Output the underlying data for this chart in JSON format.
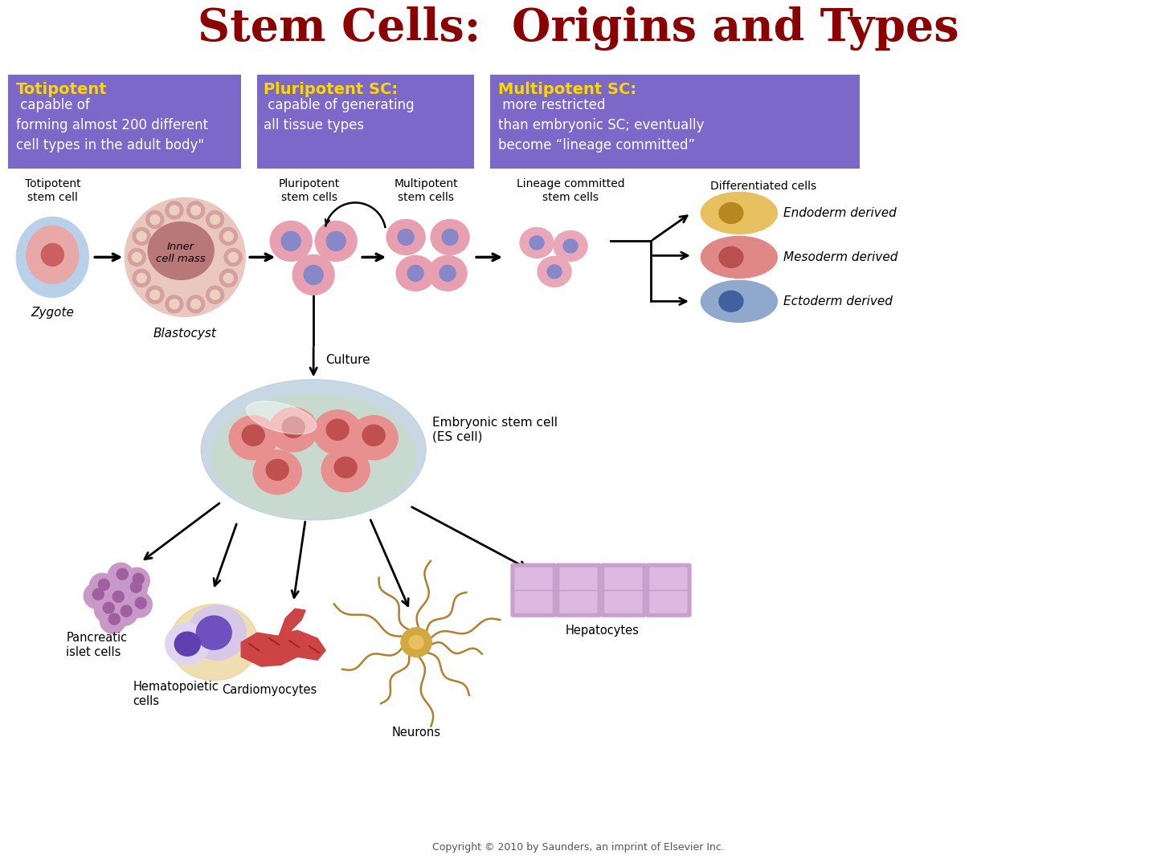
{
  "title": "Stem Cells:  Origins and Types",
  "title_color": "#8B0000",
  "title_fontsize": 40,
  "bg_color": "#FFFFFF",
  "box_color": "#7B68C8",
  "box_text_color": "#FFFFFF",
  "yellow_color": "#FFD700",
  "box1_title": "Totipotent",
  "box1_body": " capable of\nforming almost 200 different\ncell types in the adult body\"",
  "box2_title": "Pluripotent SC:",
  "box2_body": " capable of generating\nall tissue types",
  "box3_title": "Multipotent SC:",
  "box3_body": " more restricted\nthan embryonic SC; eventually\nbecome “lineage committed”",
  "label_totipotent": "Totipotent\nstem cell",
  "label_zygote": "Zygote",
  "label_blastocyst": "Blastocyst",
  "label_inner": "Inner\ncell mass",
  "label_pluripotent": "Pluripotent\nstem cells",
  "label_multipotent": "Multipotent\nstem cells",
  "label_lineage": "Lineage committed\nstem cells",
  "label_differentiated": "Differentiated cells",
  "label_culture": "Culture",
  "label_es_cell": "Embryonic stem cell\n(ES cell)",
  "label_endoderm": "Endoderm derived",
  "label_mesoderm": "Mesoderm derived",
  "label_ectoderm": "Ectoderm derived",
  "label_pancreatic": "Pancreatic\nislet cells",
  "label_hematopoietic": "Hematopoietic\ncells",
  "label_cardiomyocytes": "Cardiomyocytes",
  "label_neurons": "Neurons",
  "label_hepatocytes": "Hepatocytes",
  "copyright": "Copyright © 2010 by Saunders, an imprint of Elsevier Inc."
}
